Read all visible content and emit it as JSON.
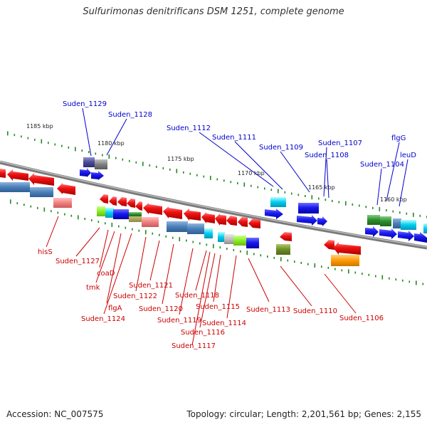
{
  "title": "Sulfurimonas denitrificans DSM 1251, complete genome",
  "accession": "Accession: NC_007575",
  "summary": "Topology: circular; Length: 2,201,561 bp; Genes: 2,155",
  "colors": {
    "backbone": "#7a7a7a",
    "forward_cds": "#1a1aee",
    "reverse_cds": "#ee1111",
    "label_forward": "#0000cc",
    "label_reverse": "#cc0000",
    "tick": "#228822"
  },
  "scale_labels": [
    "1185 kbp",
    "1180 kbp",
    "1175 kbp",
    "1170 kbp",
    "1165 kbp",
    "1160 kbp"
  ],
  "forward_labels": [
    "Suden_1129",
    "Suden_1128",
    "Suden_1112",
    "Suden_1111",
    "Suden_1109",
    "Suden_1107",
    "Suden_1108",
    "flgG",
    "Suden_1104",
    "leuD"
  ],
  "reverse_labels": [
    "hisS",
    "Suden_1127",
    "coaD",
    "tmk",
    "flgA",
    "Suden_1124",
    "Suden_1122",
    "Suden_1121",
    "Suden_1120",
    "Suden_1119",
    "Suden_1118",
    "Suden_1117",
    "Suden_1116",
    "Suden_1115",
    "Suden_1114",
    "Suden_1113",
    "Suden_1110",
    "Suden_1106"
  ]
}
